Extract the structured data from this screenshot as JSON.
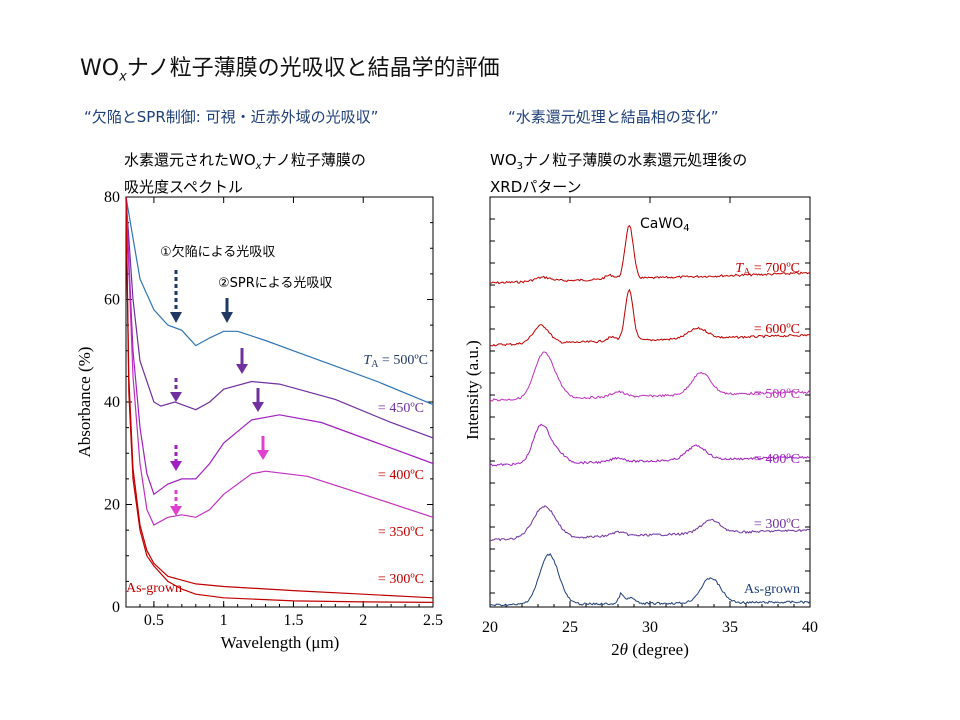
{
  "title": {
    "main_prefix": "WO",
    "main_sub": "x",
    "main_suffix": "ナノ粒子薄膜の光吸収と結晶学的評価"
  },
  "subtitles": {
    "left": "“欠陥とSPR制御: 可視・近赤外域の光吸収”",
    "right": "“水素還元処理と結晶相の変化”"
  },
  "left_caption": {
    "line1_prefix": "水素還元された",
    "line1_wo": "WO",
    "line1_sub": "x",
    "line1_suffix": "ナノ粒子薄膜の",
    "line2": "吸光度スペクトル"
  },
  "right_caption": {
    "line1_prefix": "WO",
    "line1_sub": "3",
    "line1_suffix": "ナノ粒子薄膜の水素還元処理後の",
    "line2": "XRDパターン"
  },
  "colors": {
    "blue": "#2f75b5",
    "purple_dark": "#7030a0",
    "purple": "#a020c0",
    "magenta": "#c030c0",
    "red": "#c00000",
    "navy": "#1f3f7a",
    "dark_navy": "#203864"
  },
  "chart_data": [
    {
      "type": "line",
      "xlabel": "Wavelength (μm)",
      "ylabel": "Absorbance (%)",
      "xlim": [
        0.3,
        2.5
      ],
      "ylim": [
        0,
        80
      ],
      "xticks": [
        "0.5",
        "1",
        "1.5",
        "2",
        "2.5"
      ],
      "yticks": [
        "0",
        "20",
        "40",
        "60",
        "80"
      ],
      "annotations": [
        "①欠陥による光吸収",
        "②SPRによる光吸収"
      ],
      "series": [
        {
          "name": "T_A = 500ºC",
          "label_prefix": "T",
          "label_sub": "A",
          "label_rest": " = 500ºC",
          "color": "#2f75b5",
          "x": [
            0.3,
            0.35,
            0.4,
            0.5,
            0.6,
            0.7,
            0.8,
            0.9,
            1.0,
            1.1,
            1.3,
            1.5,
            1.8,
            2.1,
            2.5
          ],
          "y": [
            80,
            72,
            64,
            58,
            55,
            54,
            51,
            52.5,
            53.8,
            53.8,
            52,
            50,
            47,
            44,
            39.5
          ]
        },
        {
          "name": "= 450ºC",
          "label": "= 450ºC",
          "color": "#7030a0",
          "x": [
            0.3,
            0.35,
            0.4,
            0.5,
            0.55,
            0.65,
            0.7,
            0.8,
            0.9,
            1.0,
            1.2,
            1.4,
            1.8,
            2.2,
            2.5
          ],
          "y": [
            80,
            60,
            48,
            40,
            39.2,
            40,
            39.5,
            38.5,
            40,
            42.5,
            44,
            43.5,
            40.5,
            36,
            33
          ]
        },
        {
          "name": "= 400ºC",
          "label": "= 400ºC",
          "color": "#a020c0",
          "x": [
            0.3,
            0.35,
            0.4,
            0.45,
            0.5,
            0.6,
            0.7,
            0.8,
            0.9,
            1.0,
            1.2,
            1.4,
            1.7,
            2.1,
            2.5
          ],
          "y": [
            80,
            50,
            35,
            26,
            22,
            24,
            25,
            25,
            28,
            32,
            36.5,
            37.5,
            36,
            32,
            28
          ]
        },
        {
          "name": "= 350ºC",
          "label": "= 350ºC",
          "color": "#c030c0",
          "x": [
            0.3,
            0.35,
            0.4,
            0.45,
            0.5,
            0.6,
            0.7,
            0.8,
            0.9,
            1.0,
            1.2,
            1.3,
            1.6,
            2.0,
            2.5
          ],
          "y": [
            80,
            45,
            28,
            19,
            16,
            17.5,
            18,
            17.5,
            19,
            22,
            26,
            26.5,
            25.5,
            22,
            17.5
          ]
        },
        {
          "name": "= 300ºC",
          "label": "= 300ºC",
          "color": "#c00000",
          "x": [
            0.3,
            0.32,
            0.35,
            0.4,
            0.45,
            0.5,
            0.6,
            0.8,
            1.0,
            1.5,
            2.0,
            2.5
          ],
          "y": [
            80,
            45,
            27,
            16,
            11,
            8.5,
            6,
            4.5,
            4,
            3.2,
            2.5,
            1.8
          ]
        },
        {
          "name": "As-grown",
          "label": "As-grown",
          "color": "#c00000",
          "x": [
            0.3,
            0.32,
            0.35,
            0.4,
            0.45,
            0.5,
            0.6,
            0.7,
            0.8,
            1.0,
            1.5,
            2.0,
            2.5
          ],
          "y": [
            80,
            42,
            25,
            15,
            10,
            8,
            5,
            3.5,
            2.5,
            1.8,
            1.2,
            1.0,
            0.9
          ]
        }
      ]
    },
    {
      "type": "line",
      "xlabel": "2θ (degree)",
      "ylabel": "Intensity (a.u.)",
      "xlim": [
        20,
        40
      ],
      "xticks": [
        "20",
        "25",
        "30",
        "35",
        "40"
      ],
      "annotations": [
        "CaWO4"
      ],
      "series": [
        {
          "name": "T_A = 700ºC",
          "label_prefix": "T",
          "label_sub": "A",
          "label_rest": " = 700ºC",
          "color": "#c00000",
          "offset": 10
        },
        {
          "name": "= 600ºC",
          "label": "= 600ºC",
          "color": "#c00000",
          "offset": 8
        },
        {
          "name": "= 500ºC",
          "label": "= 500ºC",
          "color": "#c030c0",
          "offset": 6
        },
        {
          "name": "= 400ºC",
          "label": "= 400ºC",
          "color": "#a020c0",
          "offset": 4
        },
        {
          "name": "= 300ºC",
          "label": "= 300ºC",
          "color": "#7030a0",
          "offset": 2
        },
        {
          "name": "As-grown",
          "label": "As-grown",
          "color": "#1f3f7a",
          "offset": 0
        }
      ]
    }
  ]
}
